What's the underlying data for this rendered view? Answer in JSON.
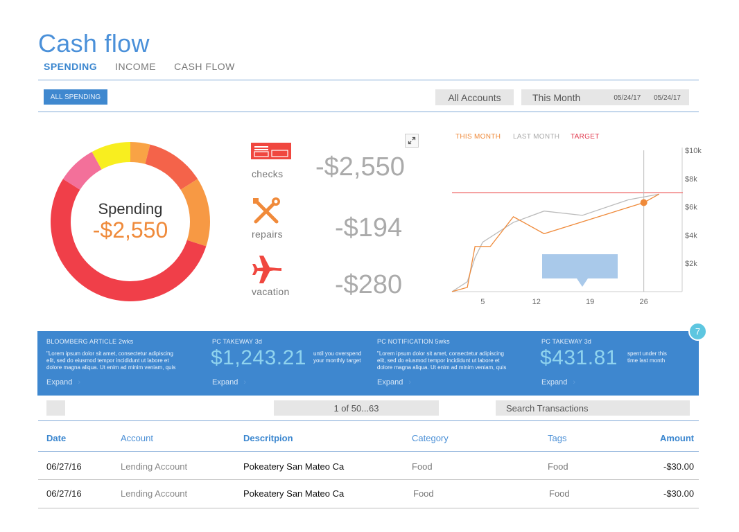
{
  "page": {
    "title": "Cash flow"
  },
  "tabs": [
    {
      "label": "SPENDING",
      "active": true
    },
    {
      "label": "INCOME",
      "active": false
    },
    {
      "label": "CASH FLOW",
      "active": false
    }
  ],
  "filters": {
    "spending_button": "ALL SPENDING",
    "accounts": "All Accounts",
    "period": "This Month",
    "date_from": "05/24/17",
    "date_to": "05/24/17"
  },
  "donut": {
    "label": "Spending",
    "value": "-$2,550",
    "segments": [
      {
        "value": 4,
        "color": "#f9a345"
      },
      {
        "value": 12,
        "color": "#f4634a"
      },
      {
        "value": 14,
        "color": "#f79944"
      },
      {
        "value": 54,
        "color": "#f03f49"
      },
      {
        "value": 8,
        "color": "#f3709a"
      },
      {
        "value": 8,
        "color": "#f8ee1f"
      }
    ]
  },
  "categories": [
    {
      "name": "checks",
      "amount": "-$2,550",
      "icon": "checks-icon"
    },
    {
      "name": "repairs",
      "amount": "-$194",
      "icon": "tools-icon"
    },
    {
      "name": "vacation",
      "amount": "-$280",
      "icon": "airplane-icon"
    }
  ],
  "legend": {
    "this_month": "THIS MONTH",
    "last_month": "LAST MONTH",
    "target": "TARGET"
  },
  "chart_data": {
    "type": "line",
    "x_ticks": [
      "5",
      "12",
      "19",
      "26"
    ],
    "y_ticks": [
      "$2k",
      "$4k",
      "$6k",
      "$8k",
      "$10k"
    ],
    "xlim": [
      1,
      31
    ],
    "ylim": [
      0,
      10000
    ],
    "target_value": 7000,
    "cursor_x": 26,
    "series": [
      {
        "name": "THIS MONTH",
        "color": "#ef8a3a",
        "points": [
          [
            1,
            0
          ],
          [
            3,
            300
          ],
          [
            4,
            3200
          ],
          [
            6,
            3200
          ],
          [
            9,
            5300
          ],
          [
            13,
            4100
          ],
          [
            26,
            6300
          ],
          [
            28,
            6900
          ]
        ]
      },
      {
        "name": "LAST MONTH",
        "color": "#bbbbbb",
        "points": [
          [
            1,
            0
          ],
          [
            3,
            700
          ],
          [
            4,
            2400
          ],
          [
            5,
            3500
          ],
          [
            9,
            4900
          ],
          [
            13,
            5700
          ],
          [
            18,
            5400
          ],
          [
            24,
            6500
          ],
          [
            28,
            6900
          ]
        ]
      }
    ]
  },
  "insights": {
    "badge": "7",
    "cards": [
      {
        "head": "BLOOMBERG ARTICLE 2wks",
        "body": "\"Lorem ipsum dolor sit amet, consectetur adipiscing elit, sed do eiusmod tempor incididunt ut labore et dolore magna aliqua. Ut enim ad minim veniam, quis",
        "expand": "Expand"
      },
      {
        "head": "PC TAKEWAY 3d",
        "big": "$1,243.21",
        "note": "until you overspend your monthly target",
        "expand": "Expand"
      },
      {
        "head": "PC NOTIFICATION 5wks",
        "body": "\"Lorem ipsum dolor sit amet, consectetur adipiscing elit, sed do eiusmod tempor incididunt ut labore et dolore magna aliqua. Ut enim ad minim veniam, quis",
        "expand": "Expand"
      },
      {
        "head": "PC TAKEWAY 3d",
        "big": "$431.81",
        "note": "spent under this time last month",
        "expand": "Expand"
      }
    ]
  },
  "controls": {
    "pager": "1 of 50...63",
    "search_placeholder": "Search Transactions"
  },
  "table": {
    "headers": {
      "date": "Date",
      "account": "Account",
      "description": "Descritpion",
      "category": "Category",
      "tags": "Tags",
      "amount": "Amount"
    },
    "rows": [
      {
        "date": "06/27/16",
        "account": "Lending Account",
        "description": "Pokeatery San Mateo Ca",
        "category": "Food",
        "tags": "Food",
        "amount": "-$30.00"
      },
      {
        "date": "06/27/16",
        "account": "Lending Account",
        "description": "Pokeatery San Mateo Ca",
        "category": "Food",
        "tags": "Food",
        "amount": "-$30.00"
      }
    ]
  }
}
